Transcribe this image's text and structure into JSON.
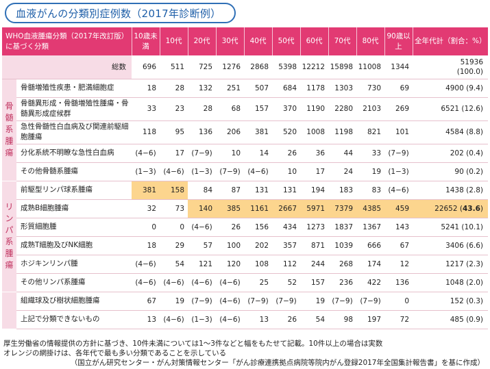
{
  "title": "血液がんの分類別症例数（2017年診断例）",
  "header": {
    "class_label": "WHO血液腫瘍分類（2017年改訂版）に基づく分類",
    "columns": [
      "10歳未満",
      "10代",
      "20代",
      "30代",
      "40代",
      "50代",
      "60代",
      "70代",
      "80代",
      "90歳以上"
    ],
    "total_column": "全年代計（割合：%）"
  },
  "total_row": {
    "label": "総数",
    "values": [
      "696",
      "511",
      "725",
      "1276",
      "2868",
      "5398",
      "12212",
      "15898",
      "11008",
      "1344"
    ],
    "total": "51936",
    "pct": "(100.0)"
  },
  "groups": [
    {
      "name": "骨髄系腫瘍",
      "rows": [
        {
          "label": "骨髄増殖性疾患・肥満細胞症",
          "values": [
            "18",
            "28",
            "132",
            "251",
            "507",
            "684",
            "1178",
            "1303",
            "730",
            "69"
          ],
          "total": "4900 (9.4)"
        },
        {
          "label": "骨髄異形成・骨髄増殖性腫瘍・骨髄異形成症候群",
          "values": [
            "33",
            "23",
            "28",
            "68",
            "157",
            "370",
            "1190",
            "2280",
            "2103",
            "269"
          ],
          "total": "6521 (12.6)"
        },
        {
          "label": "急性骨髄性白血病及び関連前駆細胞腫瘍",
          "values": [
            "118",
            "95",
            "136",
            "206",
            "381",
            "520",
            "1008",
            "1198",
            "821",
            "101"
          ],
          "total": "4584 (8.8)"
        },
        {
          "label": "分化系統不明瞭な急性白血病",
          "values": [
            "(4−6)",
            "17",
            "(7−9)",
            "10",
            "14",
            "26",
            "36",
            "44",
            "33",
            "(7−9)"
          ],
          "total": "202 (0.4)"
        },
        {
          "label": "その他骨髄系腫瘍",
          "values": [
            "(1−3)",
            "(4−6)",
            "(1−3)",
            "(7−9)",
            "(4−6)",
            "10",
            "17",
            "24",
            "19",
            "(1−3)"
          ],
          "total": "90 (0.2)"
        }
      ]
    },
    {
      "name": "リンパ系腫瘍",
      "rows": [
        {
          "label": "前駆型リンパ球系腫瘍",
          "values": [
            "381",
            "158",
            "84",
            "87",
            "131",
            "131",
            "194",
            "183",
            "83",
            "(4−6)"
          ],
          "total": "1438 (2.8)"
        },
        {
          "label": "成熟B細胞腫瘍",
          "values": [
            "32",
            "73",
            "140",
            "385",
            "1161",
            "2667",
            "5971",
            "7379",
            "4385",
            "459"
          ],
          "total": "22652",
          "total_pct": "43.6"
        },
        {
          "label": "形質細胞腫",
          "values": [
            "0",
            "0",
            "(4−6)",
            "26",
            "156",
            "434",
            "1273",
            "1837",
            "1367",
            "143"
          ],
          "total": "5241 (10.1)"
        },
        {
          "label": "成熟T細胞及びNK細胞",
          "values": [
            "18",
            "29",
            "57",
            "100",
            "202",
            "357",
            "871",
            "1039",
            "666",
            "67"
          ],
          "total": "3406 (6.6)"
        },
        {
          "label": "ホジキンリンパ腫",
          "values": [
            "(4−6)",
            "54",
            "121",
            "120",
            "108",
            "112",
            "244",
            "268",
            "174",
            "12"
          ],
          "total": "1217 (2.3)"
        },
        {
          "label": "その他リンパ系腫瘍",
          "values": [
            "(4−6)",
            "(4−6)",
            "(4−6)",
            "(4−6)",
            "25",
            "52",
            "157",
            "236",
            "422",
            "136"
          ],
          "total": "1048 (2.0)"
        }
      ]
    },
    {
      "name": "",
      "rows": [
        {
          "label": "組織球及び樹状細胞腫瘍",
          "values": [
            "67",
            "19",
            "(7−9)",
            "(4−6)",
            "(7−9)",
            "(7−9)",
            "19",
            "(7−9)",
            "(7−9)",
            "0"
          ],
          "total": "152 (0.3)"
        },
        {
          "label": "上記で分類できないもの",
          "values": [
            "13",
            "(4−6)",
            "(1−3)",
            "(4−6)",
            "13",
            "26",
            "54",
            "98",
            "197",
            "72"
          ],
          "total": "485 (0.9)"
        }
      ]
    }
  ],
  "notes": [
    "厚生労働省の情報提供の方針に基づき、10件未満については1〜3件などと幅をもたせて記載。10件以上の場合は実数",
    "オレンジの網掛けは、各年代で最も多い分類であることを示している"
  ],
  "source": "（国立がん研究センター・がん対策情報センター「がん診療連携拠点病院等院内がん登録2017年全国集計報告書」を基に作成）",
  "colors": {
    "header_bg": "#e23a73",
    "group_bg": "#f7dce6",
    "highlight": "#fcd58e",
    "title_border": "#2f6fb6"
  },
  "highlight_cells": {
    "骨髄系腫瘍": [],
    "前駆型リンパ球系腫瘍": [
      0,
      1
    ],
    "成熟B細胞腫瘍": [
      2,
      3,
      4,
      5,
      6,
      7,
      8,
      9,
      10
    ]
  }
}
